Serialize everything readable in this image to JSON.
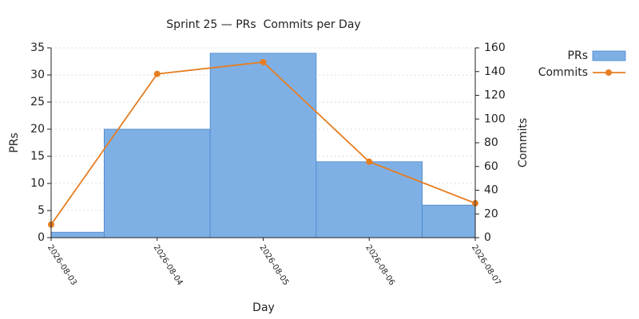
{
  "chart_data": {
    "type": "bar",
    "title": "Sprint 25 — PRs  Commits per Day",
    "x_label": "Day",
    "y_label": "PRs",
    "y2_label": "Commits",
    "categories": [
      "2026-08-03",
      "2026-08-04",
      "2026-08-05",
      "2026-08-06",
      "2026-08-07"
    ],
    "series": [
      {
        "name": "PRs",
        "type": "bar",
        "color": "#7eb0e6",
        "values": [
          1,
          20,
          34,
          14,
          6
        ]
      },
      {
        "name": "Commits",
        "type": "line",
        "axis": "y2",
        "color": "#e67e22",
        "values": [
          11,
          138,
          148,
          64,
          29
        ]
      }
    ],
    "ylim": [
      0,
      35
    ],
    "yticks": [
      0,
      5,
      10,
      15,
      20,
      25,
      30,
      35
    ],
    "y2lim": [
      0,
      160
    ],
    "y2ticks": [
      0,
      20,
      40,
      60,
      80,
      100,
      120,
      140,
      160
    ],
    "grid": true,
    "legend": "right"
  }
}
